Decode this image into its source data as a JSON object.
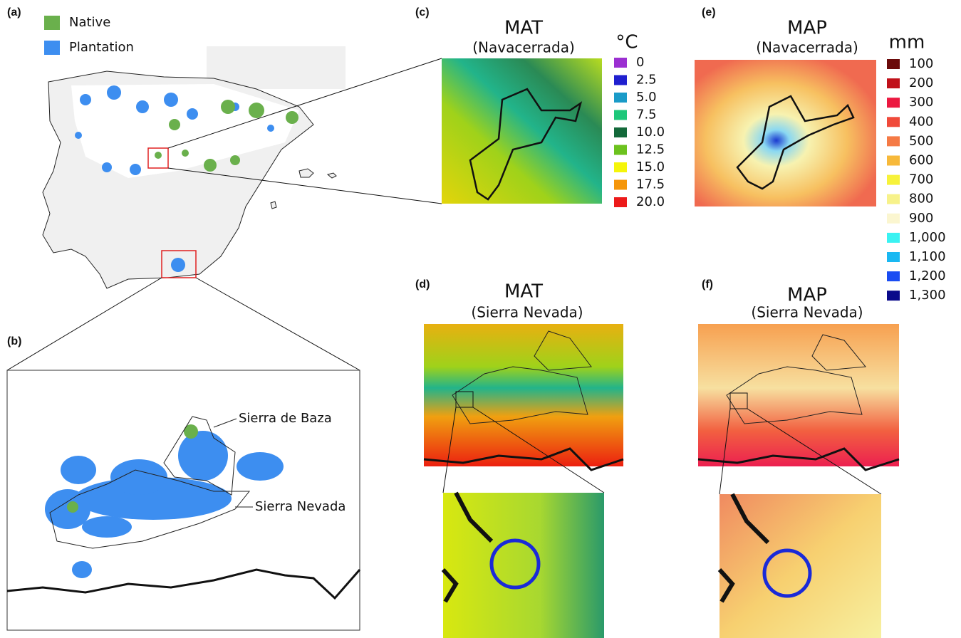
{
  "panels": {
    "a": {
      "label": "(a)",
      "legend": [
        {
          "label": "Native",
          "color": "#6ab04c"
        },
        {
          "label": "Plantation",
          "color": "#3d8ef0"
        }
      ]
    },
    "b": {
      "label": "(b)",
      "annotations": [
        "Sierra de Baza",
        "Sierra Nevada"
      ]
    },
    "c": {
      "label": "(c)",
      "title": "MAT",
      "subtitle": "(Navacerrada)"
    },
    "d": {
      "label": "(d)",
      "title": "MAT",
      "subtitle": "(Sierra Nevada)"
    },
    "e": {
      "label": "(e)",
      "title": "MAP",
      "subtitle": "(Navacerrada)"
    },
    "f": {
      "label": "(f)",
      "title": "MAP",
      "subtitle": "(Sierra Nevada)"
    }
  },
  "legends": {
    "temperature": {
      "unit": "°C",
      "items": [
        {
          "label": "0",
          "color": "#9b2fd1"
        },
        {
          "label": "2.5",
          "color": "#1f1fcf"
        },
        {
          "label": "5.0",
          "color": "#1a9bc8"
        },
        {
          "label": "7.5",
          "color": "#1ec77a"
        },
        {
          "label": "10.0",
          "color": "#13693a"
        },
        {
          "label": "12.5",
          "color": "#6cc21e"
        },
        {
          "label": "15.0",
          "color": "#f5f50a"
        },
        {
          "label": "17.5",
          "color": "#f5960a"
        },
        {
          "label": "20.0",
          "color": "#ec1a1a"
        }
      ]
    },
    "precipitation": {
      "unit": "mm",
      "items": [
        {
          "label": "100",
          "color": "#6b0a0a"
        },
        {
          "label": "200",
          "color": "#c0111a"
        },
        {
          "label": "300",
          "color": "#ec1840"
        },
        {
          "label": "400",
          "color": "#f04a3a"
        },
        {
          "label": "500",
          "color": "#f57a45"
        },
        {
          "label": "600",
          "color": "#f7b93a"
        },
        {
          "label": "700",
          "color": "#f7f23a"
        },
        {
          "label": "800",
          "color": "#f7f28a"
        },
        {
          "label": "900",
          "color": "#fbf6d0"
        },
        {
          "label": "1,000",
          "color": "#3af2f2"
        },
        {
          "label": "1,100",
          "color": "#1ab8f2"
        },
        {
          "label": "1,200",
          "color": "#1a4cf2"
        },
        {
          "label": "1,300",
          "color": "#0a0a8a"
        }
      ]
    }
  }
}
